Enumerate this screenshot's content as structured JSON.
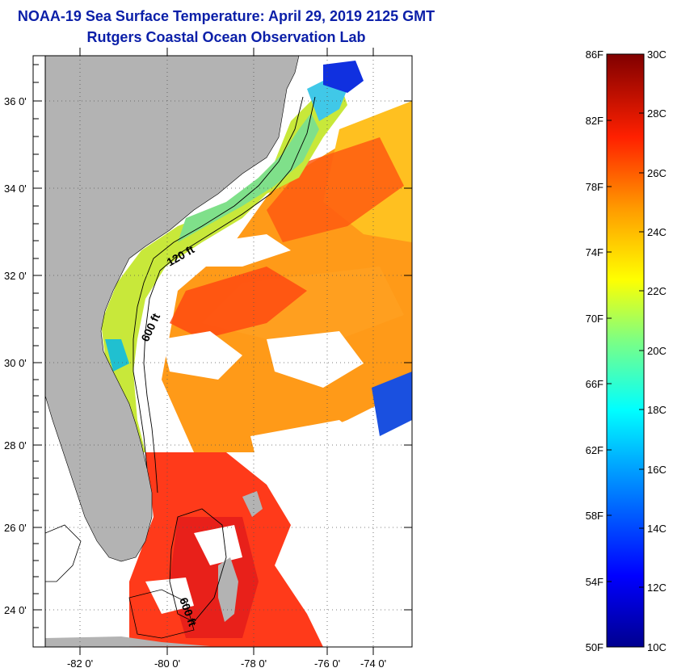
{
  "title": {
    "line1": "NOAA-19 Sea Surface Temperature:  April 29, 2019 2125 GMT",
    "line2": "Rutgers Coastal Ocean Observation Lab"
  },
  "axes": {
    "lat_labels": [
      "36 0'",
      "34 0'",
      "32 0'",
      "30 0'",
      "28 0'",
      "26 0'",
      "24 0'"
    ],
    "lon_labels": [
      "-82 0'",
      "-80 0'",
      "-78 0'",
      "-76 0'",
      "-74 0'"
    ]
  },
  "contours": {
    "label_120": "120 ft",
    "label_600": "600 ft",
    "label_600b": "600 ft"
  },
  "colorbar": {
    "fahrenheit": [
      "86F",
      "82F",
      "78F",
      "74F",
      "70F",
      "66F",
      "62F",
      "58F",
      "54F",
      "50F"
    ],
    "celsius": [
      "30C",
      "28C",
      "26C",
      "24C",
      "22C",
      "20C",
      "18C",
      "16C",
      "14C",
      "12C",
      "10C"
    ]
  },
  "colors": {
    "title": "#0b1fa8",
    "land": "#b3b3b3",
    "cloud": "#ffffff"
  }
}
